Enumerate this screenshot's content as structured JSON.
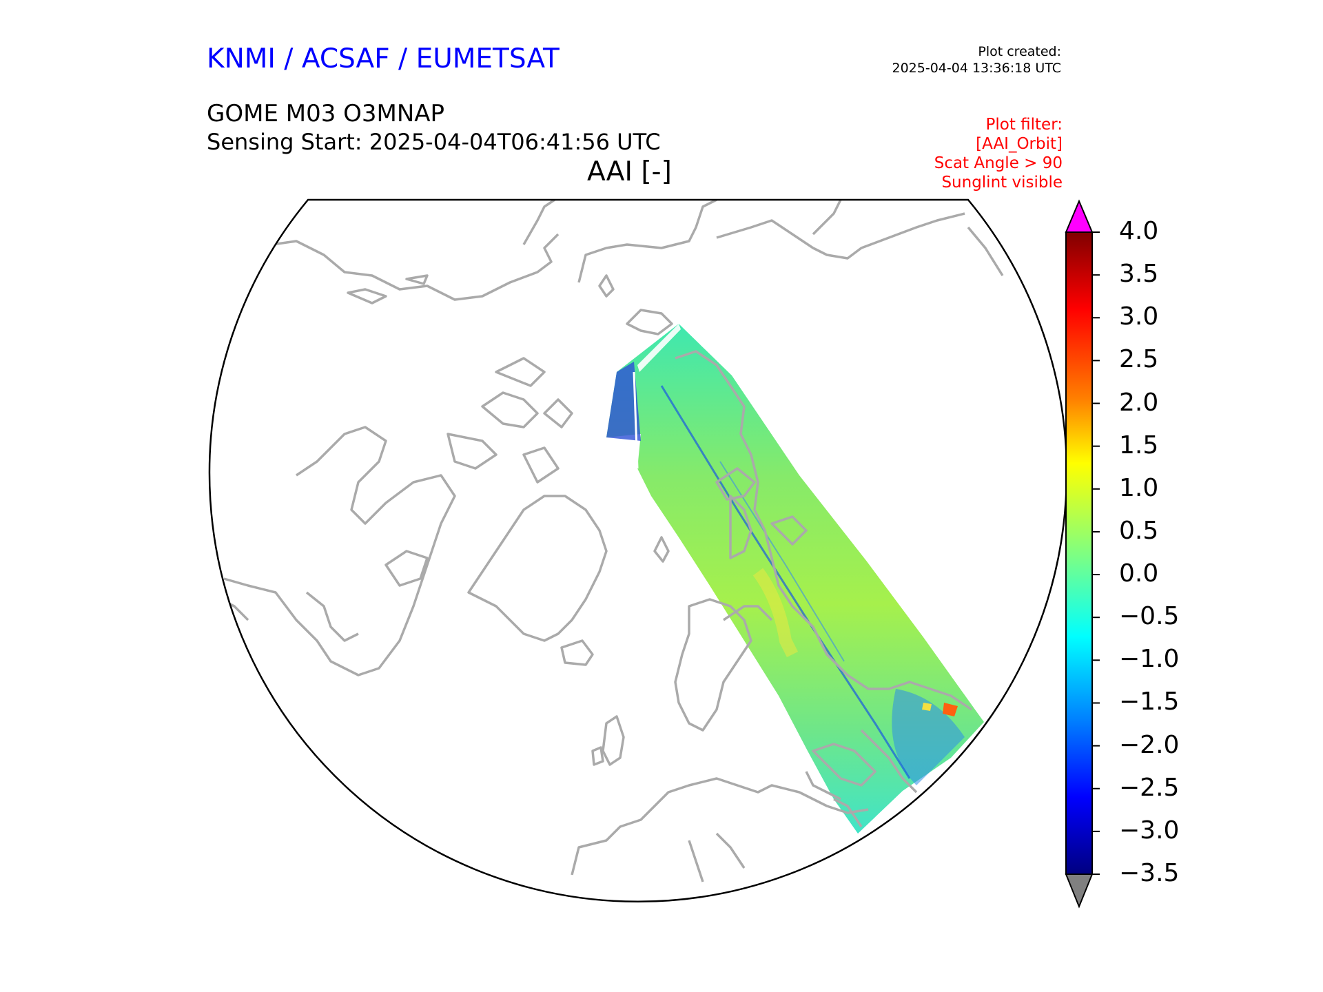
{
  "header": {
    "organization": "KNMI / ACSAF / EUMETSAT",
    "plot_created_label": "Plot created:",
    "plot_created_time": "2025-04-04 13:36:18 UTC",
    "product": "GOME M03 O3MNAP",
    "sensing_start": "Sensing Start: 2025-04-04T06:41:56 UTC",
    "variable_title": "AAI [-]"
  },
  "plot_filter": [
    "Plot filter:",
    "[AAI_Orbit]",
    "Scat Angle > 90",
    "Sunglint visible"
  ],
  "map": {
    "projection": "north polar stereographic",
    "coastline_color": "#aaaaaa",
    "swath_colors": [
      "#7ce56a",
      "#9ef24a",
      "#44e8a0",
      "#2ee6cc"
    ],
    "swath_stripe_color": "#1a6ee0"
  },
  "colorbar": {
    "min": -3.5,
    "max": 4.0,
    "ticks": [
      "4.0",
      "3.5",
      "3.0",
      "2.5",
      "2.0",
      "1.5",
      "1.0",
      "0.5",
      "0.0",
      "−0.5",
      "−1.0",
      "−1.5",
      "−2.0",
      "−2.5",
      "−3.0",
      "−3.5"
    ],
    "over_color": "#ff00ff",
    "under_color": "#808080",
    "gradient": [
      "#800000",
      "#ff0000",
      "#ff8000",
      "#ffff00",
      "#80ff80",
      "#00ffff",
      "#0080ff",
      "#0000ff",
      "#000080"
    ]
  }
}
